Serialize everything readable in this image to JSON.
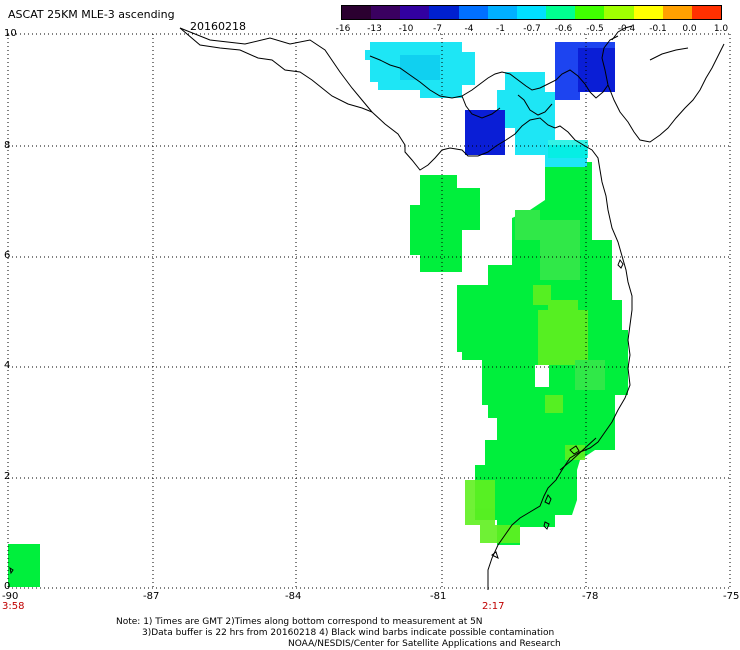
{
  "header": {
    "title": "ASCAT 25KM MLE-3 ascending",
    "date": "20160218"
  },
  "colorbar": {
    "labels": [
      "-16",
      "-13",
      "-10",
      "-7",
      "-4",
      "-1",
      "-0.7",
      "-0.6",
      "-0.5",
      "-0.4",
      "-0.1",
      "0.0",
      "1.0"
    ],
    "colors": [
      "#2b0030",
      "#3a0060",
      "#3200a0",
      "#0020d0",
      "#0070ff",
      "#00b0ff",
      "#00e0ff",
      "#00ff90",
      "#40ff00",
      "#a0ff00",
      "#ffff00",
      "#ffa000",
      "#ff3000"
    ]
  },
  "map": {
    "lat_labels": [
      "10",
      "8",
      "6",
      "4",
      "2",
      "0"
    ],
    "lon_labels": [
      "-90",
      "-87",
      "-84",
      "-81",
      "-78",
      "-75"
    ],
    "time_labels": [
      "3:58",
      "2:17"
    ],
    "colors": {
      "green": "#00ef3c",
      "lime": "#60f020",
      "cyan": "#1ee6f5",
      "cyan_light": "#00f0e0",
      "blue": "#0a1ed6",
      "blue_mid": "#1d44f0"
    }
  },
  "footer": {
    "note_line1": "Note: 1) Times are GMT 2)Times along bottom correspond to measurement at 5N",
    "note_line2": "3)Data buffer is 22 hrs from 20160218 4) Black wind barbs indicate possible contamination",
    "credit": "NOAA/NESDIS/Center for Satellite Applications and Research"
  }
}
